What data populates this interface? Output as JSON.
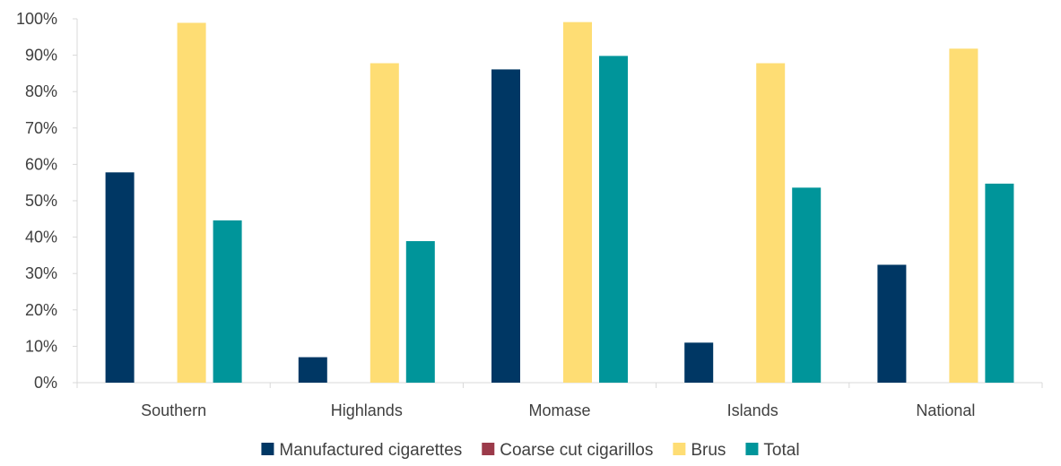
{
  "chart_data": {
    "type": "bar",
    "categories": [
      "Southern",
      "Highlands",
      "Momase",
      "Islands",
      "National"
    ],
    "series": [
      {
        "name": "Manufactured cigarettes",
        "color": "#003764",
        "values": [
          57.8,
          7.0,
          86.1,
          11.0,
          32.4
        ]
      },
      {
        "name": "Coarse cut cigarillos",
        "color": "#9B3A4A",
        "values": [
          0,
          0,
          0,
          0,
          0
        ]
      },
      {
        "name": "Brus",
        "color": "#FEDD74",
        "values": [
          98.9,
          87.8,
          99.1,
          87.8,
          91.8
        ]
      },
      {
        "name": "Total",
        "color": "#00959A",
        "values": [
          44.6,
          38.9,
          89.8,
          53.6,
          54.7
        ]
      }
    ],
    "yticks": [
      "0%",
      "10%",
      "20%",
      "30%",
      "40%",
      "50%",
      "60%",
      "70%",
      "80%",
      "90%",
      "100%"
    ],
    "ylim": [
      0,
      100
    ],
    "grid": false,
    "legend_position": "bottom"
  }
}
